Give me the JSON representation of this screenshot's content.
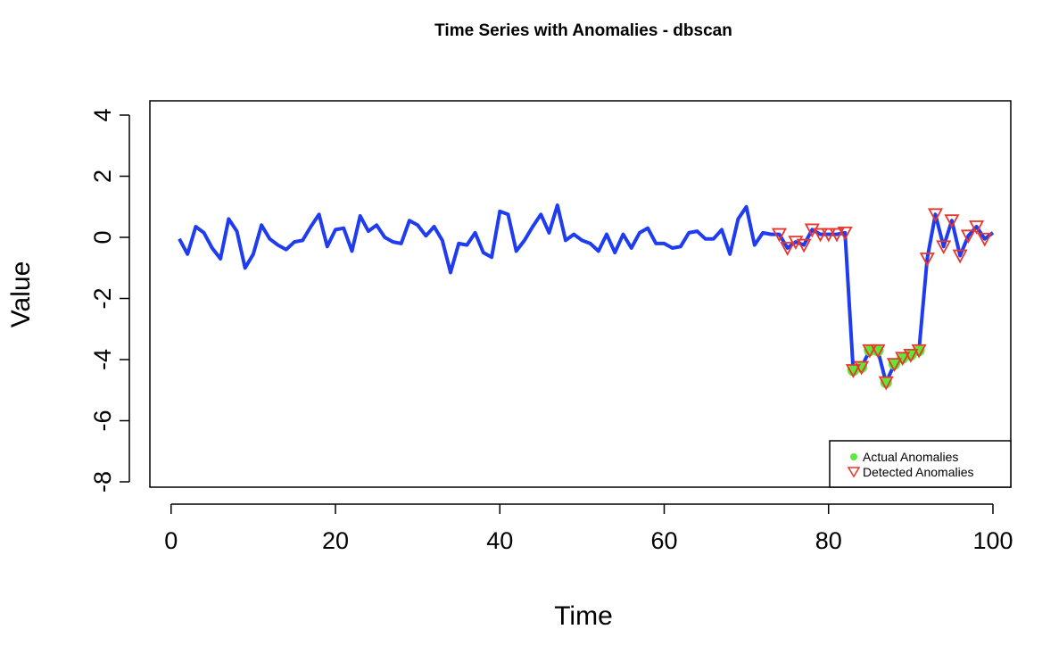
{
  "chart_data": {
    "type": "line",
    "title": "Time Series with Anomalies - dbscan",
    "xlabel": "Time",
    "ylabel": "Value",
    "xlim": [
      1,
      100
    ],
    "ylim": [
      -8,
      4
    ],
    "xticks": [
      0,
      20,
      40,
      60,
      80,
      100
    ],
    "yticks": [
      -8,
      -6,
      -4,
      -2,
      0,
      2,
      4
    ],
    "grid": false,
    "legend_position": "bottom-right",
    "series": [
      {
        "name": "",
        "style": "line",
        "color": "#1f3cf0",
        "x": [
          1,
          2,
          3,
          4,
          5,
          6,
          7,
          8,
          9,
          10,
          11,
          12,
          13,
          14,
          15,
          16,
          17,
          18,
          19,
          20,
          21,
          22,
          23,
          24,
          25,
          26,
          27,
          28,
          29,
          30,
          31,
          32,
          33,
          34,
          35,
          36,
          37,
          38,
          39,
          40,
          41,
          42,
          43,
          44,
          45,
          46,
          47,
          48,
          49,
          50,
          51,
          52,
          53,
          54,
          55,
          56,
          57,
          58,
          59,
          60,
          61,
          62,
          63,
          64,
          65,
          66,
          67,
          68,
          69,
          70,
          71,
          72,
          73,
          74,
          75,
          76,
          77,
          78,
          79,
          80,
          81,
          82,
          83,
          84,
          85,
          86,
          87,
          88,
          89,
          90,
          91,
          92,
          93,
          94,
          95,
          96,
          97,
          98,
          99,
          100
        ],
        "y": [
          -0.05,
          -0.55,
          0.35,
          0.15,
          -0.35,
          -0.7,
          0.6,
          0.2,
          -1.0,
          -0.55,
          0.4,
          -0.05,
          -0.25,
          -0.4,
          -0.15,
          -0.1,
          0.35,
          0.75,
          -0.3,
          0.25,
          0.3,
          -0.45,
          0.7,
          0.2,
          0.4,
          0.0,
          -0.15,
          -0.2,
          0.55,
          0.4,
          0.05,
          0.35,
          -0.1,
          -1.15,
          -0.2,
          -0.25,
          0.15,
          -0.5,
          -0.65,
          0.85,
          0.75,
          -0.45,
          -0.1,
          0.35,
          0.75,
          0.15,
          1.05,
          -0.1,
          0.1,
          -0.1,
          -0.2,
          -0.45,
          0.1,
          -0.5,
          0.1,
          -0.35,
          0.15,
          0.3,
          -0.2,
          -0.2,
          -0.35,
          -0.3,
          0.15,
          0.2,
          -0.05,
          -0.05,
          0.25,
          -0.55,
          0.6,
          1.0,
          -0.25,
          0.15,
          0.1,
          0.1,
          -0.35,
          -0.15,
          -0.25,
          0.25,
          0.1,
          0.1,
          0.1,
          0.15,
          -4.35,
          -4.25,
          -3.7,
          -3.7,
          -4.75,
          -4.15,
          -3.95,
          -3.85,
          -3.7,
          -0.7,
          0.75,
          -0.3,
          0.55,
          -0.6,
          0.05,
          0.35,
          -0.05,
          0.15
        ]
      },
      {
        "name": "Actual Anomalies",
        "style": "points",
        "marker": "filled-circle",
        "color": "#5de83a",
        "x": [
          83,
          84,
          85,
          86,
          87,
          88,
          89,
          90,
          91
        ],
        "y": [
          -4.35,
          -4.25,
          -3.7,
          -3.7,
          -4.75,
          -4.15,
          -3.95,
          -3.85,
          -3.7
        ]
      },
      {
        "name": "Detected Anomalies",
        "style": "points",
        "marker": "open-triangle-down",
        "color": "#e8362c",
        "x": [
          74,
          75,
          76,
          77,
          78,
          79,
          80,
          81,
          82,
          83,
          84,
          85,
          86,
          87,
          88,
          89,
          90,
          91,
          92,
          93,
          94,
          95,
          96,
          97,
          98,
          99
        ],
        "y": [
          0.1,
          -0.35,
          -0.15,
          -0.25,
          0.25,
          0.1,
          0.1,
          0.1,
          0.15,
          -4.35,
          -4.25,
          -3.7,
          -3.7,
          -4.75,
          -4.15,
          -3.95,
          -3.85,
          -3.7,
          -0.7,
          0.75,
          -0.3,
          0.55,
          -0.6,
          0.05,
          0.35,
          -0.05
        ]
      }
    ]
  }
}
